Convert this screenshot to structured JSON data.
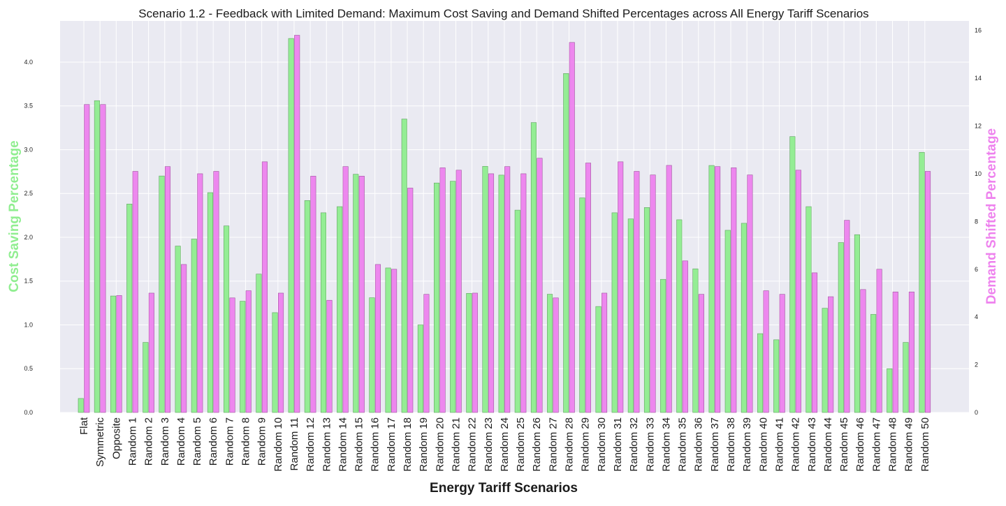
{
  "chart_data": {
    "type": "bar",
    "title": "Scenario 1.2 - Feedback with Limited Demand: Maximum Cost Saving and Demand Shifted Percentages across All Energy Tariff Scenarios",
    "xlabel": "Energy Tariff Scenarios",
    "ylabel_left": "Cost Saving Percentage",
    "ylabel_right": "Demand Shifted Percentage",
    "ylim_left": [
      0,
      4.47
    ],
    "ylim_right": [
      0,
      16.4
    ],
    "yticks_left": [
      "0.0",
      "0.5",
      "1.0",
      "1.5",
      "2.0",
      "2.5",
      "3.0",
      "3.5",
      "4.0"
    ],
    "yticks_right": [
      "0",
      "2",
      "4",
      "6",
      "8",
      "10",
      "12",
      "14",
      "16"
    ],
    "grid": true,
    "categories": [
      "Flat",
      "Symmetric",
      "Opposite",
      "Random 1",
      "Random 2",
      "Random 3",
      "Random 4",
      "Random 5",
      "Random 6",
      "Random 7",
      "Random 8",
      "Random 9",
      "Random 10",
      "Random 11",
      "Random 12",
      "Random 13",
      "Random 14",
      "Random 15",
      "Random 16",
      "Random 17",
      "Random 18",
      "Random 19",
      "Random 20",
      "Random 21",
      "Random 22",
      "Random 23",
      "Random 24",
      "Random 25",
      "Random 26",
      "Random 27",
      "Random 28",
      "Random 29",
      "Random 30",
      "Random 31",
      "Random 32",
      "Random 33",
      "Random 34",
      "Random 35",
      "Random 36",
      "Random 37",
      "Random 38",
      "Random 39",
      "Random 40",
      "Random 41",
      "Random 42",
      "Random 43",
      "Random 44",
      "Random 45",
      "Random 46",
      "Random 47",
      "Random 48",
      "Random 49",
      "Random 50"
    ],
    "series": [
      {
        "axis": "left",
        "color": "#90ee90",
        "values": [
          0.16,
          3.56,
          1.33,
          2.38,
          0.8,
          2.7,
          1.9,
          1.98,
          2.51,
          2.13,
          1.27,
          1.58,
          1.14,
          4.27,
          2.42,
          2.28,
          2.35,
          2.72,
          1.31,
          1.65,
          3.35,
          1.0,
          2.62,
          2.64,
          1.36,
          2.81,
          2.71,
          2.31,
          3.31,
          1.35,
          3.87,
          2.45,
          1.21,
          2.28,
          2.21,
          2.34,
          1.52,
          2.2,
          1.64,
          2.82,
          2.08,
          2.16,
          0.9,
          0.83,
          3.15,
          2.35,
          1.19,
          1.94,
          2.03,
          1.12,
          0.5,
          0.8,
          2.97
        ]
      },
      {
        "axis": "right",
        "color": "#ee82ee",
        "values": [
          12.9,
          12.9,
          4.9,
          10.1,
          5.0,
          10.3,
          6.2,
          10.0,
          10.1,
          4.8,
          5.1,
          10.5,
          5.0,
          15.8,
          9.9,
          4.7,
          10.3,
          9.9,
          6.2,
          6.0,
          9.4,
          4.95,
          10.25,
          10.15,
          5.0,
          10.0,
          10.3,
          10.0,
          10.65,
          4.8,
          15.5,
          10.45,
          5.0,
          10.5,
          10.1,
          9.95,
          10.35,
          6.35,
          4.95,
          10.3,
          10.25,
          9.95,
          5.1,
          4.95,
          10.15,
          5.85,
          4.85,
          8.05,
          5.15,
          6.0,
          5.05,
          5.05,
          10.1
        ]
      }
    ]
  }
}
